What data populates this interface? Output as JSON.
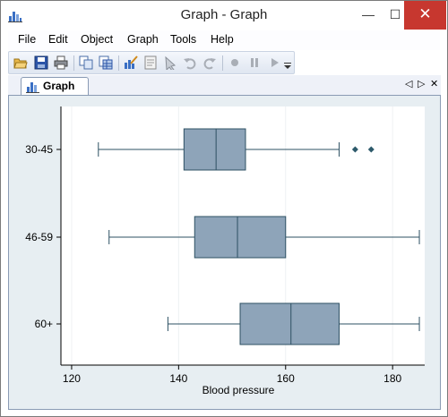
{
  "window": {
    "title": "Graph - Graph",
    "minimize_glyph": "—",
    "maximize_glyph": "☐",
    "close_glyph": "✕"
  },
  "menu": {
    "items": [
      {
        "label": "File"
      },
      {
        "label": "Edit"
      },
      {
        "label": "Object"
      },
      {
        "label": "Graph"
      },
      {
        "label": "Tools"
      },
      {
        "label": "Help"
      }
    ]
  },
  "toolbar": {
    "icons": [
      "open-icon",
      "save-icon",
      "print-icon",
      "copy-icon",
      "copy-table-icon",
      "graph-editor-icon",
      "recorder-icon",
      "pointer-icon",
      "undo-icon",
      "redo-icon",
      "record-icon",
      "pause-icon",
      "play-icon",
      "dropdown-icon"
    ]
  },
  "tabs": {
    "active_label": "Graph",
    "prev_glyph": "◁",
    "next_glyph": "▷",
    "close_glyph": "✕"
  },
  "colors": {
    "box_fill": "#8ea4b9",
    "box_stroke": "#2d5063",
    "outlier": "#2d5a6b",
    "plot_bg": "#ffffff",
    "frame_bg": "#e7eef2",
    "close_red": "#c7372f"
  },
  "chart_data": {
    "type": "boxplot",
    "orientation": "horizontal",
    "xlabel": "Blood pressure",
    "xlim": [
      118,
      186
    ],
    "xticks": [
      120,
      140,
      160,
      180
    ],
    "grid": true,
    "categories": [
      "30-45",
      "46-59",
      "60+"
    ],
    "boxes": [
      {
        "label": "30-45",
        "whisker_low": 125,
        "q1": 141,
        "median": 147,
        "q3": 152.5,
        "whisker_high": 170,
        "outliers": [
          173,
          176
        ]
      },
      {
        "label": "46-59",
        "whisker_low": 127,
        "q1": 143,
        "median": 151,
        "q3": 160,
        "whisker_high": 185,
        "outliers": []
      },
      {
        "label": "60+",
        "whisker_low": 138,
        "q1": 151.5,
        "median": 161,
        "q3": 170,
        "whisker_high": 185,
        "outliers": []
      }
    ]
  }
}
